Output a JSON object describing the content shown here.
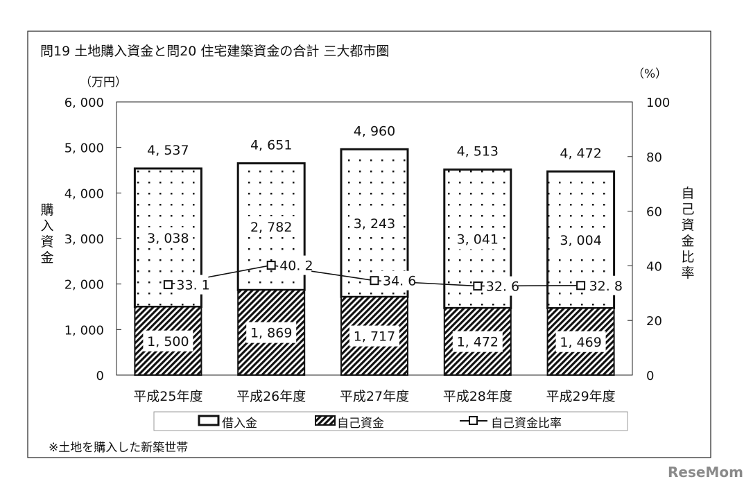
{
  "chart_data": {
    "type": "bar",
    "stacked": true,
    "title": "問19 土地購入資金と問20 住宅建築資金の合計 三大都市圏",
    "categories": [
      "平成25年度",
      "平成26年度",
      "平成27年度",
      "平成28年度",
      "平成29年度"
    ],
    "series": [
      {
        "name": "自己資金",
        "values": [
          1500,
          1869,
          1717,
          1472,
          1469
        ],
        "pattern": "diagonal-stripes"
      },
      {
        "name": "借入金",
        "values": [
          3038,
          2782,
          3243,
          3041,
          3004
        ],
        "pattern": "dots"
      },
      {
        "name": "自己資金比率",
        "type": "line",
        "axis": "right",
        "values": [
          33.1,
          40.2,
          34.6,
          32.6,
          32.8
        ],
        "marker": "square"
      }
    ],
    "totals": [
      4537,
      4651,
      4960,
      4513,
      4472
    ],
    "value_labels": {
      "totals": [
        "4, 537",
        "4, 651",
        "4, 960",
        "4, 513",
        "4, 472"
      ],
      "borrowed": [
        "3, 038",
        "2, 782",
        "3, 243",
        "3, 041",
        "3, 004"
      ],
      "own": [
        "1, 500",
        "1, 869",
        "1, 717",
        "1, 472",
        "1, 469"
      ],
      "ratio": [
        "33. 1",
        "40. 2",
        "34. 6",
        "32. 6",
        "32. 8"
      ]
    },
    "left_axis": {
      "label": "購入資金",
      "unit": "（万円）",
      "ylim": [
        0,
        6000
      ],
      "ticks": [
        0,
        1000,
        2000,
        3000,
        4000,
        5000,
        6000
      ],
      "tick_labels": [
        "0",
        "1, 000",
        "2, 000",
        "3, 000",
        "4, 000",
        "5, 000",
        "6, 000"
      ]
    },
    "right_axis": {
      "label": "自己資金比率",
      "unit": "（%）",
      "ylim": [
        0,
        100
      ],
      "ticks": [
        0,
        20,
        40,
        60,
        80,
        100
      ],
      "tick_labels": [
        "0",
        "20",
        "40",
        "60",
        "80",
        "100"
      ]
    },
    "legend": {
      "placement": "bottom",
      "entries": [
        "借入金",
        "自己資金",
        "自己資金比率"
      ]
    },
    "grid": false,
    "note": "※土地を購入した新築世帯"
  },
  "watermark": "ReseMom"
}
